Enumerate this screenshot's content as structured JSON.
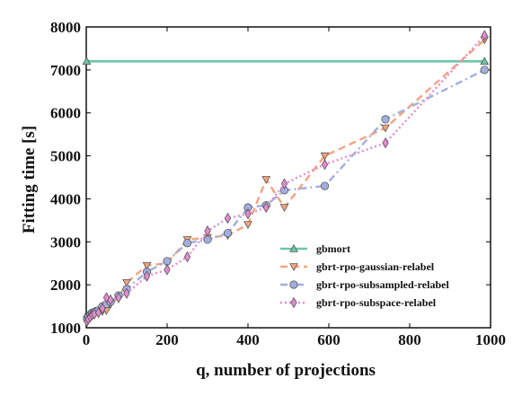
{
  "chart_data": {
    "type": "line",
    "title": "",
    "xlabel": "q, number of projections",
    "ylabel": "Fitting time [s]",
    "xlim": [
      0,
      1000
    ],
    "ylim": [
      1000,
      8000
    ],
    "xticks": [
      0,
      200,
      400,
      600,
      800,
      1000
    ],
    "yticks": [
      1000,
      2000,
      3000,
      4000,
      5000,
      6000,
      7000,
      8000
    ],
    "grid": false,
    "legend_position": "lower-right",
    "series": [
      {
        "name": "gbmort",
        "color": "#6cc7a8",
        "marker": "triangle-up",
        "dash": "solid",
        "points": [
          [
            1,
            7200
          ],
          [
            985,
            7200
          ]
        ]
      },
      {
        "name": "gbrt-rpo-gaussian-relabel",
        "color": "#f4a37e",
        "marker": "triangle-down",
        "dash": "dashed",
        "points": [
          [
            2,
            1200
          ],
          [
            5,
            1250
          ],
          [
            10,
            1300
          ],
          [
            15,
            1320
          ],
          [
            20,
            1350
          ],
          [
            30,
            1400
          ],
          [
            40,
            1380
          ],
          [
            50,
            1400
          ],
          [
            60,
            1550
          ],
          [
            80,
            1700
          ],
          [
            100,
            2050
          ],
          [
            150,
            2450
          ],
          [
            200,
            2500
          ],
          [
            250,
            3050
          ],
          [
            300,
            3100
          ],
          [
            350,
            3150
          ],
          [
            400,
            3400
          ],
          [
            445,
            4450
          ],
          [
            490,
            3800
          ],
          [
            590,
            5000
          ],
          [
            740,
            5650
          ],
          [
            985,
            7700
          ]
        ]
      },
      {
        "name": "gbrt-rpo-subsampled-relabel",
        "color": "#a3aee0",
        "marker": "circle",
        "dash": "dashdot",
        "points": [
          [
            2,
            1200
          ],
          [
            5,
            1250
          ],
          [
            10,
            1300
          ],
          [
            15,
            1350
          ],
          [
            20,
            1370
          ],
          [
            30,
            1400
          ],
          [
            40,
            1500
          ],
          [
            50,
            1550
          ],
          [
            60,
            1600
          ],
          [
            80,
            1750
          ],
          [
            100,
            1900
          ],
          [
            150,
            2300
          ],
          [
            200,
            2550
          ],
          [
            250,
            2970
          ],
          [
            300,
            3050
          ],
          [
            350,
            3200
          ],
          [
            400,
            3800
          ],
          [
            445,
            3850
          ],
          [
            490,
            4200
          ],
          [
            590,
            4300
          ],
          [
            740,
            5850
          ],
          [
            985,
            7000
          ]
        ]
      },
      {
        "name": "gbrt-rpo-subspace-relabel",
        "color": "#e48bd0",
        "marker": "diamond",
        "dash": "dotted",
        "points": [
          [
            2,
            1150
          ],
          [
            5,
            1200
          ],
          [
            10,
            1250
          ],
          [
            15,
            1300
          ],
          [
            20,
            1320
          ],
          [
            30,
            1350
          ],
          [
            40,
            1450
          ],
          [
            50,
            1700
          ],
          [
            60,
            1650
          ],
          [
            80,
            1700
          ],
          [
            100,
            1800
          ],
          [
            150,
            2200
          ],
          [
            200,
            2350
          ],
          [
            250,
            2650
          ],
          [
            300,
            3250
          ],
          [
            350,
            3550
          ],
          [
            400,
            3650
          ],
          [
            445,
            3800
          ],
          [
            490,
            4350
          ],
          [
            590,
            4800
          ],
          [
            740,
            5300
          ],
          [
            985,
            7800
          ]
        ]
      }
    ]
  }
}
